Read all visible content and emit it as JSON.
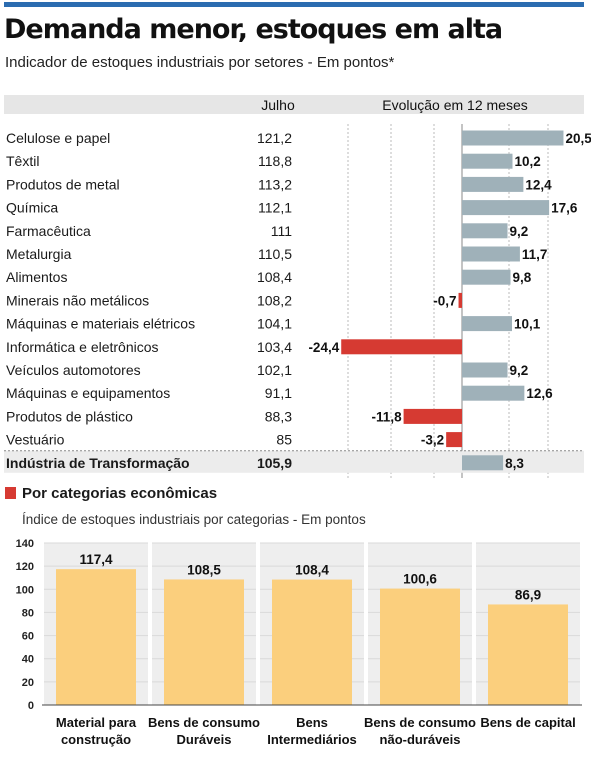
{
  "header": {
    "title": "Demanda menor, estoques em alta",
    "subtitle": "Indicador de estoques industriais por setores - Em pontos*"
  },
  "chart_data": [
    {
      "type": "table",
      "columns": [
        "",
        "Julho",
        "Evolução em 12 meses"
      ],
      "rows": [
        {
          "sector": "Celulose e papel",
          "july": "121,2",
          "change": 20.5,
          "change_label": "20,5"
        },
        {
          "sector": "Têxtil",
          "july": "118,8",
          "change": 10.2,
          "change_label": "10,2"
        },
        {
          "sector": "Produtos de metal",
          "july": "113,2",
          "change": 12.4,
          "change_label": "12,4"
        },
        {
          "sector": "Química",
          "july": "112,1",
          "change": 17.6,
          "change_label": "17,6"
        },
        {
          "sector": "Farmacêutica",
          "july": "111",
          "change": 9.2,
          "change_label": "9,2"
        },
        {
          "sector": "Metalurgia",
          "july": "110,5",
          "change": 11.7,
          "change_label": "11,7"
        },
        {
          "sector": "Alimentos",
          "july": "108,4",
          "change": 9.8,
          "change_label": "9,8"
        },
        {
          "sector": "Minerais não metálicos",
          "july": "108,2",
          "change": -0.7,
          "change_label": "-0,7"
        },
        {
          "sector": "Máquinas e materiais elétricos",
          "july": "104,1",
          "change": 10.1,
          "change_label": "10,1"
        },
        {
          "sector": "Informática e eletrônicos",
          "july": "103,4",
          "change": -24.4,
          "change_label": "-24,4"
        },
        {
          "sector": "Veículos automotores",
          "july": "102,1",
          "change": 9.2,
          "change_label": "9,2"
        },
        {
          "sector": "Máquinas e equipamentos",
          "july": "91,1",
          "change": 12.6,
          "change_label": "12,6"
        },
        {
          "sector": "Produtos de plástico",
          "july": "88,3",
          "change": -11.8,
          "change_label": "-11,8"
        },
        {
          "sector": "Vestuário",
          "july": "85",
          "change": -3.2,
          "change_label": "-3,2"
        }
      ],
      "total": {
        "sector": "Indústria de Transformação",
        "july": "105,9",
        "change": 8.3,
        "change_label": "8,3"
      },
      "colors": {
        "positive": "#9fb1b9",
        "negative": "#d63a32",
        "header_bg": "#e6e6e6",
        "total_bg": "#ececec"
      }
    },
    {
      "type": "bar",
      "section_label": "Por categorias econômicas",
      "subtitle": "Índice de estoques industriais por categorias - Em pontos",
      "categories": [
        [
          "Material para",
          "construção"
        ],
        [
          "Bens de consumo",
          "Duráveis"
        ],
        [
          "Bens",
          "Intermediários"
        ],
        [
          "Bens de consumo",
          "não-duráveis"
        ],
        [
          "Bens de capital"
        ]
      ],
      "values": [
        117.4,
        108.5,
        108.4,
        100.6,
        86.9
      ],
      "value_labels": [
        "117,4",
        "108,5",
        "108,4",
        "100,6",
        "86,9"
      ],
      "ylim": [
        0,
        140
      ],
      "yticks": [
        0,
        20,
        40,
        60,
        80,
        100,
        120,
        140
      ],
      "colors": {
        "bar": "#fbcf7d",
        "panel": "#eeeeee",
        "grid": "#d9d9d9",
        "accent": "#d63a32"
      }
    }
  ]
}
